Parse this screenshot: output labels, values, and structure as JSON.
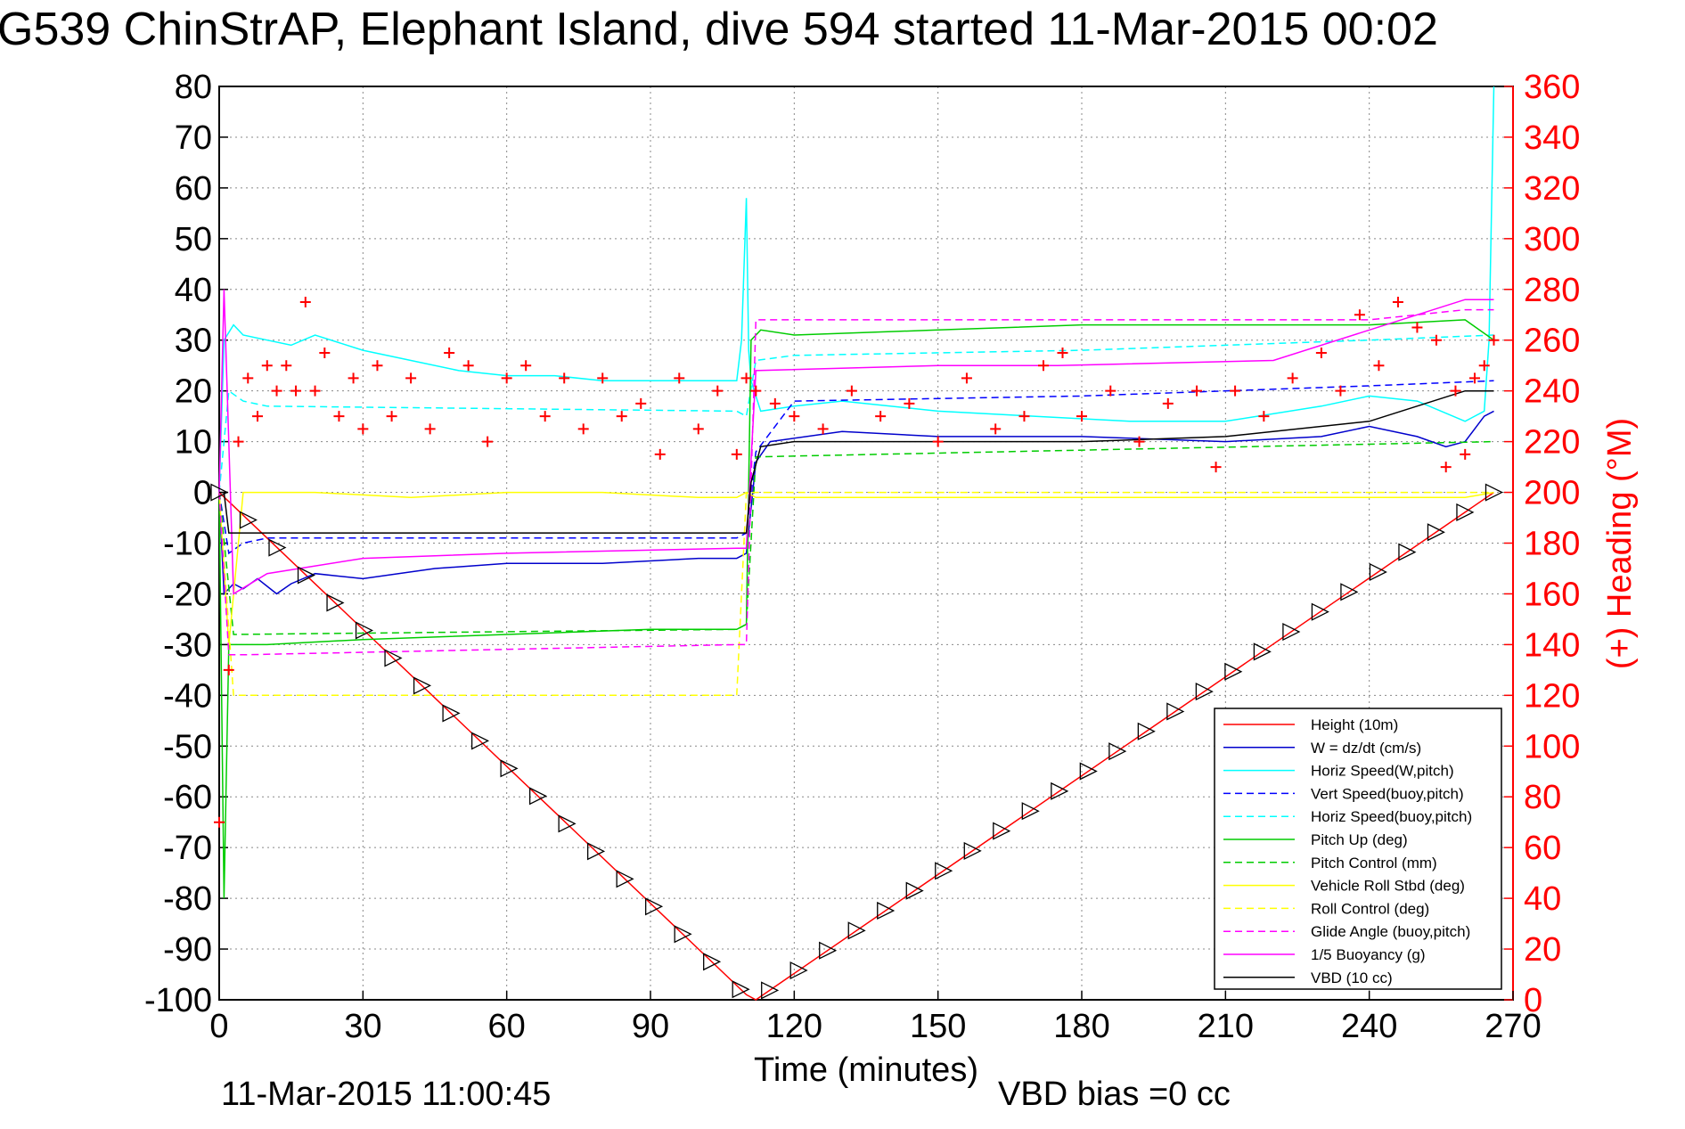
{
  "chart_data": {
    "type": "line",
    "title": "G539 ChinStrAP, Elephant Island, dive 594 started 11-Mar-2015 00:02",
    "xlabel": "Time (minutes)",
    "ylabel_right": "(+) Heading (°M)",
    "footer_timestamp": "11-Mar-2015 11:00:45",
    "footer_vbd_bias": "VBD bias =0 cc",
    "xlim": [
      0,
      270
    ],
    "ylim": [
      -100,
      80
    ],
    "ylim_right": [
      0,
      360
    ],
    "grid": true,
    "legend_position": "lower-right",
    "x_ticks": [
      "0",
      "30",
      "60",
      "90",
      "120",
      "150",
      "180",
      "210",
      "240",
      "270"
    ],
    "y_ticks": [
      "80",
      "70",
      "60",
      "50",
      "40",
      "30",
      "20",
      "10",
      "0",
      "-10",
      "-20",
      "-30",
      "-40",
      "-50",
      "-60",
      "-70",
      "-80",
      "-90",
      "-100"
    ],
    "y_ticks_right": [
      "360",
      "340",
      "320",
      "300",
      "280",
      "260",
      "240",
      "220",
      "200",
      "180",
      "160",
      "140",
      "120",
      "100",
      "80",
      "60",
      "40",
      "20",
      "0"
    ],
    "series": [
      {
        "name": "Height (10m)",
        "color": "#ff0000",
        "style": "solid",
        "x": [
          0,
          110,
          112,
          266
        ],
        "y": [
          0,
          -99,
          -100,
          0
        ]
      },
      {
        "name": "W = dz/dt (cm/s)",
        "color": "#0000cc",
        "style": "solid",
        "x": [
          0,
          1,
          3,
          5,
          8,
          12,
          15,
          20,
          30,
          45,
          60,
          80,
          100,
          108,
          110,
          112,
          115,
          130,
          150,
          180,
          210,
          230,
          240,
          250,
          256,
          260,
          264,
          266
        ],
        "y": [
          0,
          -20,
          -18,
          -19,
          -17,
          -20,
          -18,
          -16,
          -17,
          -15,
          -14,
          -14,
          -13,
          -13,
          -12,
          6,
          10,
          12,
          11,
          11,
          10,
          11,
          13,
          11,
          9,
          10,
          15,
          16
        ]
      },
      {
        "name": "Horiz Speed(W,pitch)",
        "color": "#00ffff",
        "style": "solid",
        "x": [
          0,
          1,
          3,
          5,
          10,
          15,
          20,
          30,
          40,
          50,
          60,
          70,
          80,
          90,
          100,
          108,
          109,
          110,
          110.5,
          111,
          113,
          120,
          130,
          150,
          170,
          190,
          210,
          230,
          240,
          250,
          260,
          264,
          265,
          266
        ],
        "y": [
          0,
          30,
          33,
          31,
          30,
          29,
          31,
          28,
          26,
          24,
          23,
          23,
          22,
          22,
          22,
          22,
          30,
          58,
          28,
          22,
          16,
          17,
          18,
          16,
          15,
          14,
          14,
          17,
          19,
          18,
          14,
          16,
          30,
          80
        ]
      },
      {
        "name": "Vert Speed(buoy,pitch)",
        "color": "#0000ff",
        "style": "dashed",
        "x": [
          0,
          2,
          5,
          10,
          108,
          110,
          112,
          120,
          180,
          240,
          266
        ],
        "y": [
          0,
          -12,
          -10,
          -9,
          -9,
          -8,
          8,
          18,
          19,
          21,
          22
        ]
      },
      {
        "name": "Horiz Speed(buoy,pitch)",
        "color": "#00ffff",
        "style": "dashed",
        "x": [
          0,
          2,
          5,
          10,
          108,
          110,
          112,
          120,
          180,
          240,
          266
        ],
        "y": [
          0,
          20,
          18,
          17,
          16,
          15,
          26,
          27,
          28,
          30,
          31
        ]
      },
      {
        "name": "Pitch Up (deg)",
        "color": "#00cc00",
        "style": "solid",
        "x": [
          0,
          1,
          2,
          5,
          10,
          30,
          60,
          90,
          108,
          110,
          111,
          113,
          120,
          150,
          180,
          210,
          240,
          260,
          266
        ],
        "y": [
          0,
          -80,
          -30,
          -30,
          -30,
          -29,
          -28,
          -27,
          -27,
          -26,
          30,
          32,
          31,
          32,
          33,
          33,
          33,
          34,
          30
        ]
      },
      {
        "name": "Pitch Control (mm)",
        "color": "#00cc00",
        "style": "dashed",
        "x": [
          0,
          3,
          108,
          110,
          112,
          266
        ],
        "y": [
          0,
          -28,
          -27,
          -26,
          7,
          10
        ]
      },
      {
        "name": "Vehicle Roll Stbd (deg)",
        "color": "#ffff00",
        "style": "solid",
        "x": [
          0,
          2,
          5,
          20,
          40,
          60,
          80,
          100,
          108,
          110,
          112,
          140,
          170,
          200,
          230,
          260,
          266
        ],
        "y": [
          0,
          -30,
          0,
          0,
          -1,
          0,
          0,
          -1,
          -1,
          0,
          -1,
          -1,
          -1,
          -1,
          -1,
          -1,
          0
        ]
      },
      {
        "name": "Roll Control (deg)",
        "color": "#ffff00",
        "style": "dashed",
        "x": [
          0,
          3,
          108,
          110,
          112,
          266
        ],
        "y": [
          0,
          -40,
          -40,
          0,
          0,
          0
        ]
      },
      {
        "name": "Glide Angle (buoy,pitch)",
        "color": "#ff00ff",
        "style": "dashed",
        "x": [
          0,
          2,
          5,
          108,
          110,
          112,
          200,
          240,
          260,
          266
        ],
        "y": [
          0,
          -32,
          -32,
          -30,
          -30,
          34,
          34,
          34,
          36,
          36
        ]
      },
      {
        "name": "1/5 Buoyancy (g)",
        "color": "#ff00ff",
        "style": "solid",
        "x": [
          0,
          1,
          3,
          10,
          30,
          60,
          108,
          110,
          112,
          150,
          175,
          220,
          260,
          266
        ],
        "y": [
          0,
          40,
          -20,
          -16,
          -13,
          -12,
          -11,
          -11,
          24,
          25,
          25,
          26,
          38,
          38
        ]
      },
      {
        "name": "VBD (10 cc)",
        "color": "#000000",
        "style": "solid",
        "x": [
          0,
          1,
          2,
          108,
          110,
          111,
          113,
          120,
          150,
          180,
          210,
          240,
          260,
          266
        ],
        "y": [
          0,
          0,
          -8,
          -8,
          -8,
          2,
          9,
          10,
          10,
          10,
          11,
          14,
          20,
          20
        ]
      }
    ],
    "heading_series": {
      "name": "Heading",
      "axis": "right",
      "color": "#ff0000",
      "marker": "+",
      "x": [
        0,
        2,
        4,
        6,
        8,
        10,
        12,
        14,
        16,
        18,
        20,
        22,
        25,
        28,
        30,
        33,
        36,
        40,
        44,
        48,
        52,
        56,
        60,
        64,
        68,
        72,
        76,
        80,
        84,
        88,
        92,
        96,
        100,
        104,
        108,
        110,
        112,
        116,
        120,
        126,
        132,
        138,
        144,
        150,
        156,
        162,
        168,
        172,
        176,
        180,
        186,
        192,
        198,
        204,
        208,
        212,
        218,
        224,
        230,
        234,
        238,
        242,
        246,
        250,
        254,
        256,
        258,
        260,
        262,
        264,
        266
      ],
      "y": [
        70,
        130,
        220,
        245,
        230,
        250,
        240,
        250,
        240,
        275,
        240,
        255,
        230,
        245,
        225,
        250,
        230,
        245,
        225,
        255,
        250,
        220,
        245,
        250,
        230,
        245,
        225,
        245,
        230,
        235,
        215,
        245,
        225,
        240,
        215,
        245,
        240,
        235,
        230,
        225,
        240,
        230,
        235,
        220,
        245,
        225,
        230,
        250,
        255,
        230,
        240,
        220,
        235,
        240,
        210,
        240,
        230,
        245,
        255,
        240,
        270,
        250,
        275,
        265,
        260,
        210,
        240,
        215,
        245,
        250,
        260
      ]
    },
    "annotations": [
      "VBD bias =0 cc",
      "11-Mar-2015 11:00:45"
    ]
  }
}
